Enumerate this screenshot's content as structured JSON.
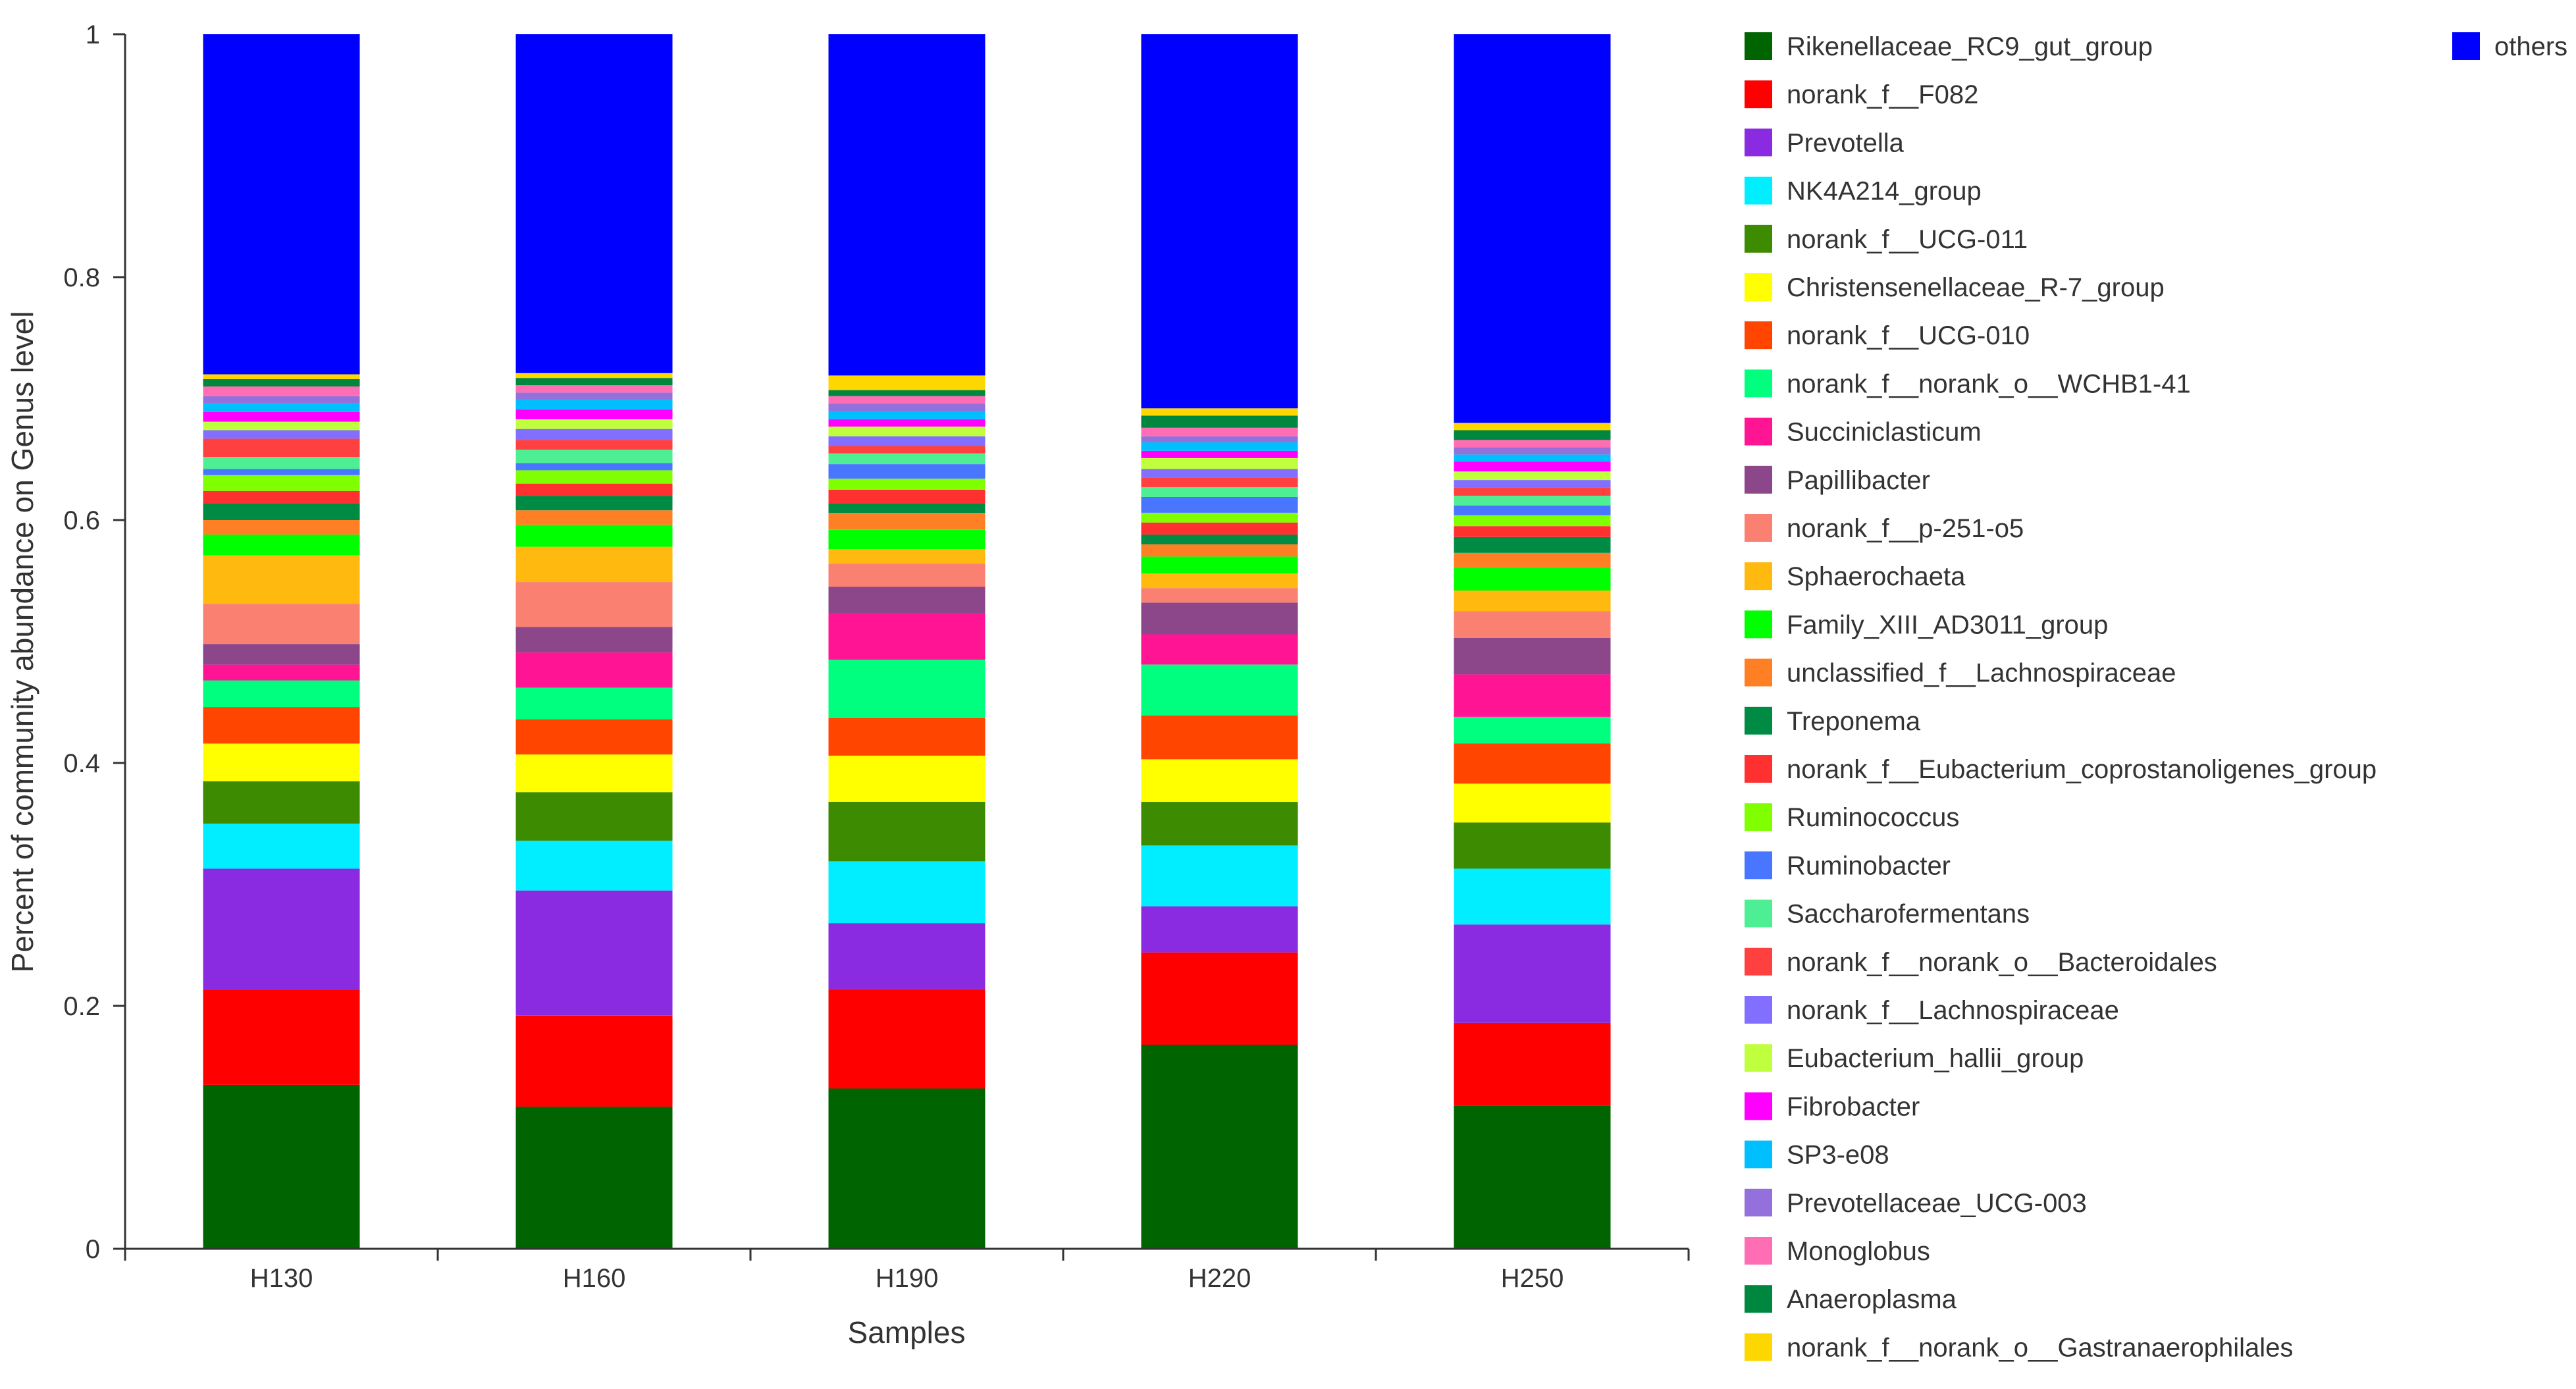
{
  "chart_data": {
    "type": "bar",
    "stacked": true,
    "xlabel": "Samples",
    "ylabel": "Percent of community abundance on Genus level",
    "ylim": [
      0,
      1
    ],
    "yticks": [
      "0",
      "0.2",
      "0.4",
      "0.6",
      "0.8",
      "1"
    ],
    "categories": [
      "H130",
      "H160",
      "H190",
      "H220",
      "H250"
    ],
    "legend_position": "right",
    "series": [
      {
        "name": "Rikenellaceae_RC9_gut_group",
        "color": "#006400",
        "values": [
          0.135,
          0.117,
          0.132,
          0.168,
          0.118
        ]
      },
      {
        "name": "norank_f__F082",
        "color": "#ff0000",
        "values": [
          0.078,
          0.075,
          0.082,
          0.076,
          0.068
        ]
      },
      {
        "name": "Prevotella",
        "color": "#8a2be2",
        "values": [
          0.1,
          0.103,
          0.054,
          0.038,
          0.081
        ]
      },
      {
        "name": "NK4A214_group",
        "color": "#00eeff",
        "values": [
          0.037,
          0.041,
          0.051,
          0.05,
          0.046
        ]
      },
      {
        "name": "norank_f__UCG-011",
        "color": "#3c8b00",
        "values": [
          0.035,
          0.04,
          0.049,
          0.036,
          0.038
        ]
      },
      {
        "name": "Christensenellaceae_R-7_group",
        "color": "#ffff00",
        "values": [
          0.031,
          0.031,
          0.038,
          0.035,
          0.032
        ]
      },
      {
        "name": "norank_f__UCG-010",
        "color": "#ff4500",
        "values": [
          0.03,
          0.029,
          0.031,
          0.036,
          0.033
        ]
      },
      {
        "name": "norank_f__norank_o__WCHB1-41",
        "color": "#00ff7f",
        "values": [
          0.022,
          0.026,
          0.048,
          0.042,
          0.022
        ]
      },
      {
        "name": "Succiniclasticum",
        "color": "#ff1493",
        "values": [
          0.013,
          0.029,
          0.038,
          0.025,
          0.035
        ]
      },
      {
        "name": "Papillibacter",
        "color": "#8b4789",
        "values": [
          0.017,
          0.021,
          0.022,
          0.026,
          0.03
        ]
      },
      {
        "name": "norank_f__p-251-o5",
        "color": "#fa8072",
        "values": [
          0.033,
          0.037,
          0.019,
          0.012,
          0.022
        ]
      },
      {
        "name": "Sphaerochaeta",
        "color": "#ffb90f",
        "values": [
          0.04,
          0.029,
          0.012,
          0.012,
          0.017
        ]
      },
      {
        "name": "Family_XIII_AD3011_group",
        "color": "#00ff00",
        "values": [
          0.017,
          0.018,
          0.016,
          0.014,
          0.019
        ]
      },
      {
        "name": "unclassified_f__Lachnospiraceae",
        "color": "#ff7f24",
        "values": [
          0.012,
          0.012,
          0.014,
          0.01,
          0.012
        ]
      },
      {
        "name": "Treponema",
        "color": "#008b45",
        "values": [
          0.014,
          0.012,
          0.008,
          0.008,
          0.013
        ]
      },
      {
        "name": "norank_f__Eubacterium_coprostanoligenes_group",
        "color": "#ff3030",
        "values": [
          0.01,
          0.01,
          0.011,
          0.01,
          0.009
        ]
      },
      {
        "name": "Ruminococcus",
        "color": "#7fff00",
        "values": [
          0.013,
          0.011,
          0.009,
          0.008,
          0.009
        ]
      },
      {
        "name": "Ruminobacter",
        "color": "#4876ff",
        "values": [
          0.005,
          0.006,
          0.012,
          0.013,
          0.008
        ]
      },
      {
        "name": "Saccharofermentans",
        "color": "#4eee94",
        "values": [
          0.01,
          0.011,
          0.009,
          0.008,
          0.008
        ]
      },
      {
        "name": "norank_f__norank_o__Bacteroidales",
        "color": "#ff4040",
        "values": [
          0.015,
          0.008,
          0.006,
          0.008,
          0.007
        ]
      },
      {
        "name": "norank_f__Lachnospiraceae",
        "color": "#836fff",
        "values": [
          0.007,
          0.009,
          0.008,
          0.007,
          0.006
        ]
      },
      {
        "name": "Eubacterium_hallii_group",
        "color": "#c0ff3e",
        "values": [
          0.007,
          0.008,
          0.008,
          0.009,
          0.007
        ]
      },
      {
        "name": "Fibrobacter",
        "color": "#ff00ff",
        "values": [
          0.008,
          0.008,
          0.006,
          0.006,
          0.008
        ]
      },
      {
        "name": "SP3-e08",
        "color": "#00bfff",
        "values": [
          0.007,
          0.008,
          0.007,
          0.007,
          0.006
        ]
      },
      {
        "name": "Prevotellaceae_UCG-003",
        "color": "#9370db",
        "values": [
          0.006,
          0.006,
          0.006,
          0.005,
          0.006
        ]
      },
      {
        "name": "Monoglobus",
        "color": "#ff6eb4",
        "values": [
          0.008,
          0.006,
          0.006,
          0.007,
          0.006
        ]
      },
      {
        "name": "Anaeroplasma",
        "color": "#00873f",
        "values": [
          0.006,
          0.006,
          0.005,
          0.01,
          0.008
        ]
      },
      {
        "name": "norank_f__norank_o__Gastranaerophilales",
        "color": "#ffd700",
        "values": [
          0.004,
          0.004,
          0.012,
          0.006,
          0.006
        ]
      },
      {
        "name": "others",
        "color": "#0000ff",
        "values": [
          0.241,
          0.259,
          0.272,
          0.287,
          0.291
        ]
      }
    ]
  }
}
